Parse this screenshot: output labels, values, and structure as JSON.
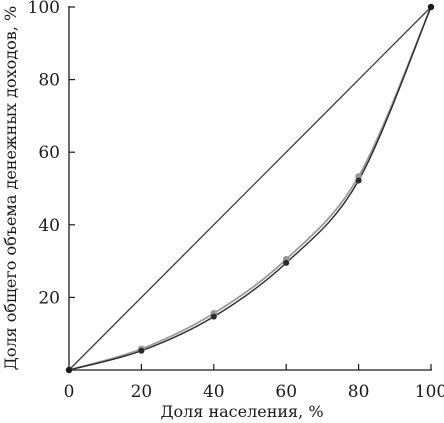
{
  "chart_data": {
    "type": "line",
    "title": "",
    "xlabel": "Доля населения, %",
    "ylabel": "Доля общего объема денежных доходов, %",
    "xlim": [
      0,
      100
    ],
    "ylim": [
      0,
      100
    ],
    "x_ticks": [
      "0",
      "20",
      "40",
      "60",
      "80",
      "100"
    ],
    "y_ticks": [
      "20",
      "40",
      "60",
      "80",
      "100"
    ],
    "grid": false,
    "legend": "none",
    "series": [
      {
        "kind": "equality-line",
        "color": "#3a3a3a",
        "x": [
          0,
          100
        ],
        "y": [
          0,
          100
        ]
      },
      {
        "kind": "lorenz-curve-light",
        "color": "#9a9a9a",
        "x": [
          0,
          20,
          40,
          60,
          80,
          100
        ],
        "y": [
          0,
          5.8,
          15.6,
          30.5,
          53.3,
          100
        ]
      },
      {
        "kind": "lorenz-curve-dark",
        "color": "#2a2a2a",
        "x": [
          0,
          20,
          40,
          60,
          80,
          100
        ],
        "y": [
          0,
          5.3,
          14.7,
          29.5,
          52.2,
          100
        ]
      }
    ]
  }
}
